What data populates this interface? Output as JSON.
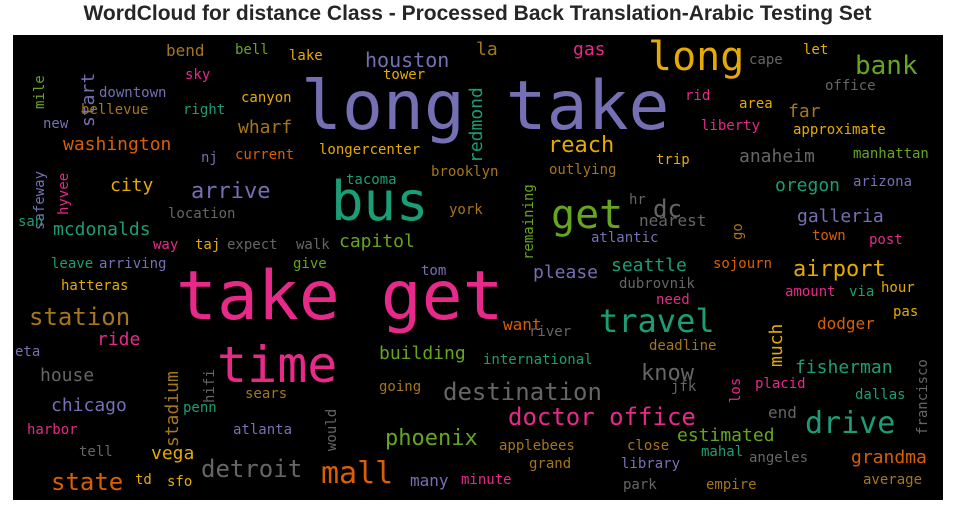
{
  "title": "WordCloud for distance Class - Processed Back Translation-Arabic Testing Set",
  "colors": {
    "background": "#000000",
    "palette": [
      "#1b9e77",
      "#d95f02",
      "#7570b3",
      "#e7298a",
      "#66a61e",
      "#e6ab02",
      "#a6761d",
      "#666666"
    ]
  },
  "words": [
    "long take",
    "take get",
    "bus",
    "time",
    "long",
    "get",
    "bank",
    "travel",
    "drive",
    "mall",
    "destination",
    "doctor office",
    "phoenix",
    "detroit",
    "state",
    "station",
    "arrive",
    "houston",
    "reach",
    "know",
    "airport",
    "building",
    "city",
    "washington",
    "chicago",
    "start",
    "redmond",
    "capitol",
    "mcdonalds",
    "dc",
    "seattle",
    "oregon",
    "anaheim",
    "galleria",
    "fisherman",
    "estimated",
    "grandma",
    "much",
    "vega",
    "stadium",
    "please",
    "gas",
    "house",
    "ride",
    "wharf",
    "far",
    "la",
    "bend",
    "nearest",
    "dodger",
    "want",
    "many",
    "end",
    "hyvee",
    "safeway",
    "international",
    "canyon",
    "tower",
    "downtown",
    "bellevue",
    "right",
    "sky",
    "bell",
    "lake",
    "current",
    "longercenter",
    "nj",
    "tacoma",
    "brooklyn",
    "outlying",
    "trip",
    "go",
    "remaining",
    "york",
    "expect",
    "walk",
    "way",
    "taj",
    "location",
    "san",
    "new",
    "mile",
    "eta",
    "harbor",
    "tell",
    "atlanta",
    "would",
    "penn",
    "hifi",
    "sears",
    "going",
    "jfk",
    "los",
    "placid",
    "dallas",
    "francisco",
    "applebees",
    "close",
    "mahal",
    "angeles",
    "grand",
    "library",
    "park",
    "empire",
    "average",
    "minute",
    "sfo",
    "td",
    "deadline",
    "river",
    "dubrovnik",
    "need",
    "sojourn",
    "amount",
    "via",
    "hour",
    "pas",
    "post",
    "town",
    "arizona",
    "manhattan",
    "office",
    "approximate",
    "liberty",
    "area",
    "rid",
    "cape",
    "let",
    "atlantic",
    "hr",
    "tom",
    "give",
    "leave",
    "arriving",
    "hatteras"
  ]
}
